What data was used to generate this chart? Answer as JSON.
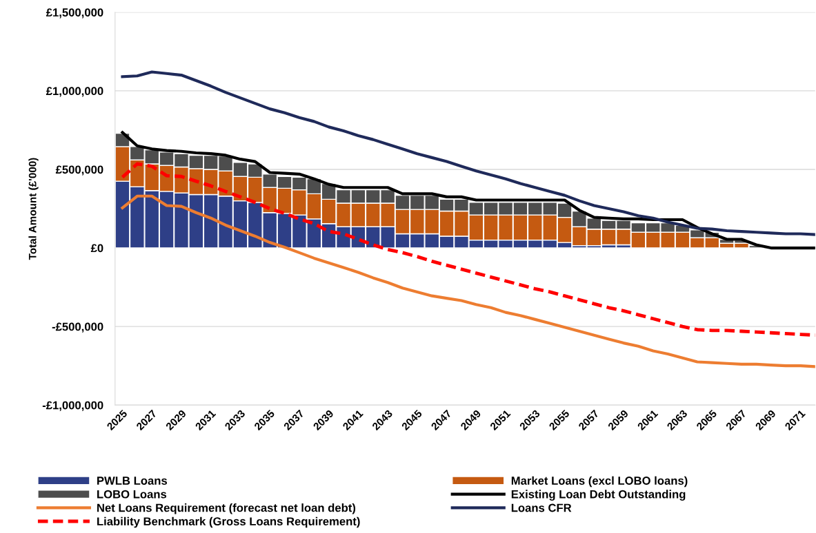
{
  "chart_data": {
    "type": "bar",
    "stacked": true,
    "ylabel": "Total Amount (£'000)",
    "categories": [
      "2025",
      null,
      "2027",
      null,
      "2029",
      null,
      "2031",
      null,
      "2033",
      null,
      "2035",
      null,
      "2037",
      null,
      "2039",
      null,
      "2041",
      null,
      "2043",
      null,
      "2045",
      null,
      "2047",
      null,
      "2049",
      null,
      "2051",
      null,
      "2053",
      null,
      "2055",
      null,
      "2057",
      null,
      "2059",
      null,
      "2061",
      null,
      "2063",
      null,
      "2065",
      null,
      "2067",
      null,
      "2069",
      null,
      "2071",
      null
    ],
    "ylim": [
      -1000000,
      1500000
    ],
    "yticks": [
      {
        "value": -1000000,
        "label": "-£1,000,000"
      },
      {
        "value": -500000,
        "label": "-£500,000"
      },
      {
        "value": 0,
        "label": "£0"
      },
      {
        "value": 500000,
        "label": "£500,000"
      },
      {
        "value": 1000000,
        "label": "£1,000,000"
      },
      {
        "value": 1500000,
        "label": "£1,500,000"
      }
    ],
    "grid": "y",
    "legend": "bottom",
    "series": [
      {
        "name": "PWLB Loans",
        "type": "bar",
        "color": "#2e3f87",
        "values": [
          425000,
          390000,
          365000,
          360000,
          350000,
          340000,
          340000,
          330000,
          300000,
          290000,
          225000,
          220000,
          210000,
          185000,
          155000,
          135000,
          135000,
          135000,
          135000,
          90000,
          90000,
          90000,
          75000,
          75000,
          50000,
          50000,
          50000,
          50000,
          50000,
          50000,
          35000,
          15000,
          15000,
          20000,
          20000,
          null,
          0,
          0,
          0,
          0,
          0,
          0,
          0,
          0,
          0,
          0,
          0,
          0
        ]
      },
      {
        "name": "Market Loans (excl LOBO loans)",
        "type": "bar",
        "color": "#c55a11",
        "values": [
          220000,
          170000,
          170000,
          165000,
          165000,
          165000,
          160000,
          160000,
          155000,
          160000,
          160000,
          160000,
          160000,
          160000,
          155000,
          150000,
          150000,
          150000,
          150000,
          155000,
          155000,
          155000,
          160000,
          160000,
          160000,
          160000,
          160000,
          160000,
          160000,
          160000,
          160000,
          120000,
          105000,
          100000,
          100000,
          100000,
          100000,
          100000,
          100000,
          65000,
          65000,
          30000,
          30000,
          0,
          0,
          0,
          0,
          0
        ]
      },
      {
        "name": "LOBO Loans",
        "type": "bar",
        "color": "#4d4d4d",
        "values": [
          85000,
          85000,
          90000,
          85000,
          85000,
          85000,
          90000,
          95000,
          90000,
          85000,
          85000,
          75000,
          80000,
          95000,
          100000,
          85000,
          85000,
          85000,
          85000,
          90000,
          90000,
          90000,
          75000,
          75000,
          80000,
          80000,
          80000,
          80000,
          80000,
          80000,
          90000,
          100000,
          70000,
          55000,
          55000,
          60000,
          60000,
          60000,
          45000,
          50000,
          35000,
          25000,
          20000,
          15000,
          0,
          0,
          0,
          0
        ]
      },
      {
        "name": "Existing Loan Debt Outstanding",
        "type": "line",
        "color": "#000000",
        "line_style": "solid",
        "values": [
          735000,
          650000,
          630000,
          620000,
          615000,
          605000,
          600000,
          590000,
          565000,
          550000,
          480000,
          475000,
          470000,
          440000,
          405000,
          385000,
          385000,
          385000,
          385000,
          345000,
          345000,
          345000,
          325000,
          325000,
          305000,
          305000,
          305000,
          305000,
          305000,
          305000,
          305000,
          240000,
          195000,
          190000,
          185000,
          185000,
          180000,
          180000,
          180000,
          130000,
          90000,
          55000,
          55000,
          20000,
          0,
          0,
          0,
          0
        ]
      },
      {
        "name": "Net Loans Requirement (forecast net loan debt)",
        "type": "line",
        "color": "#ed7d31",
        "line_style": "solid",
        "values": [
          255000,
          330000,
          330000,
          270000,
          265000,
          225000,
          190000,
          145000,
          110000,
          75000,
          35000,
          5000,
          -30000,
          -65000,
          -95000,
          -125000,
          -155000,
          -190000,
          -220000,
          -255000,
          -280000,
          -305000,
          -320000,
          -335000,
          -360000,
          -380000,
          -410000,
          -430000,
          -455000,
          -480000,
          -505000,
          -530000,
          -555000,
          -580000,
          -605000,
          -625000,
          -655000,
          -675000,
          -700000,
          -725000,
          -730000,
          -735000,
          -740000,
          -740000,
          -745000,
          -750000,
          -750000,
          -755000
        ]
      },
      {
        "name": "Loans CFR",
        "type": "line",
        "color": "#1f2a5a",
        "line_style": "solid",
        "values": [
          1090000,
          1095000,
          1120000,
          1110000,
          1100000,
          1065000,
          1030000,
          990000,
          955000,
          920000,
          885000,
          860000,
          830000,
          805000,
          770000,
          745000,
          715000,
          690000,
          660000,
          630000,
          600000,
          575000,
          550000,
          520000,
          490000,
          465000,
          440000,
          410000,
          385000,
          360000,
          335000,
          300000,
          270000,
          250000,
          230000,
          205000,
          190000,
          165000,
          145000,
          125000,
          120000,
          110000,
          105000,
          100000,
          95000,
          90000,
          90000,
          85000
        ]
      },
      {
        "name": "Liability Benchmark (Gross Loans Requirement)",
        "type": "line",
        "color": "#ff0000",
        "line_style": "dashed",
        "values": [
          450000,
          535000,
          520000,
          460000,
          455000,
          425000,
          395000,
          360000,
          325000,
          290000,
          250000,
          220000,
          185000,
          155000,
          105000,
          90000,
          55000,
          20000,
          -10000,
          -30000,
          -55000,
          -85000,
          -110000,
          -135000,
          -160000,
          -185000,
          -210000,
          -235000,
          -260000,
          -280000,
          -305000,
          -330000,
          -355000,
          -380000,
          -400000,
          -425000,
          -450000,
          -475000,
          -500000,
          -520000,
          -525000,
          -525000,
          -530000,
          -535000,
          -540000,
          -545000,
          -550000,
          -555000
        ]
      }
    ]
  }
}
